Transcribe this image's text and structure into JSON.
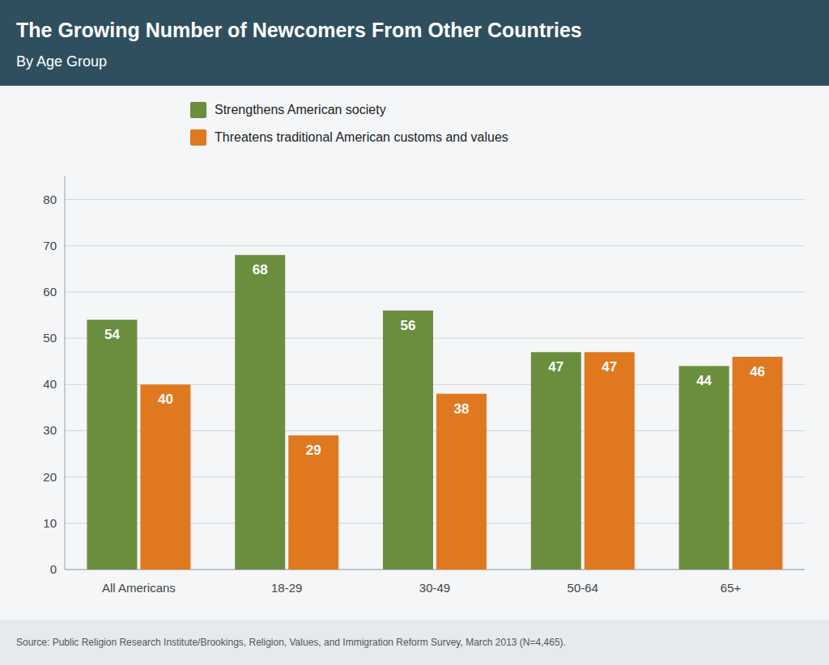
{
  "chart_data": {
    "type": "bar",
    "title": "The Growing Number of Newcomers From Other Countries",
    "subtitle": "By Age Group",
    "source": "Source: Public Religion Research Institute/Brookings, Religion, Values, and Immigration Reform Survey, March 2013 (N=4,465).",
    "categories": [
      "All Americans",
      "18-29",
      "30-49",
      "50-64",
      "65+"
    ],
    "series": [
      {
        "name": "Strengthens American society",
        "color": "#6b8e3e",
        "values": [
          54,
          68,
          56,
          47,
          44
        ]
      },
      {
        "name": "Threatens traditional American customs and values",
        "color": "#e07820",
        "values": [
          40,
          29,
          38,
          47,
          46
        ]
      }
    ],
    "ylim": [
      0,
      85
    ],
    "yticks": [
      0,
      10,
      20,
      30,
      40,
      50,
      60,
      70,
      80
    ],
    "grid": true,
    "legend": "top",
    "data_labels": true
  }
}
